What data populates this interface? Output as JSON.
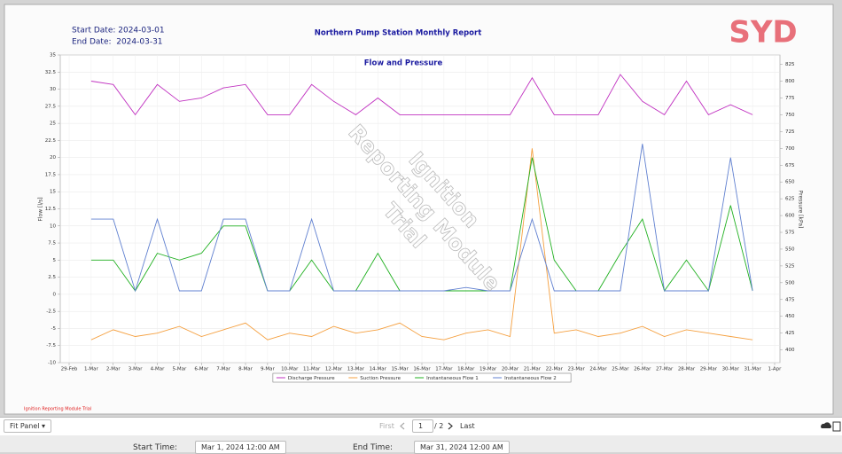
{
  "header": {
    "start_date": "Start Date: 2024-03-01",
    "end_date": "End Date:  2024-03-31",
    "title": "Northern Pump Station Monthly Report",
    "logo": "SYD"
  },
  "chart_data": {
    "type": "line",
    "title": "Flow and Pressure",
    "ylabel": "Flow [l/s]",
    "y2label": "Pressure [kPa]",
    "categories": [
      "29-Feb",
      "1-Mar",
      "2-Mar",
      "3-Mar",
      "4-Mar",
      "5-Mar",
      "6-Mar",
      "7-Mar",
      "8-Mar",
      "9-Mar",
      "10-Mar",
      "11-Mar",
      "12-Mar",
      "13-Mar",
      "14-Mar",
      "15-Mar",
      "16-Mar",
      "17-Mar",
      "18-Mar",
      "19-Mar",
      "20-Mar",
      "21-Mar",
      "22-Mar",
      "23-Mar",
      "24-Mar",
      "25-Mar",
      "26-Mar",
      "27-Mar",
      "28-Mar",
      "29-Mar",
      "30-Mar",
      "31-Mar",
      "1-Apr"
    ],
    "series": [
      {
        "name": "Discharge Pressure",
        "color": "#c030c0",
        "axis": "y2",
        "values": [
          null,
          800,
          795,
          750,
          795,
          770,
          775,
          790,
          795,
          750,
          750,
          795,
          770,
          750,
          775,
          750,
          750,
          750,
          750,
          750,
          750,
          805,
          750,
          750,
          750,
          810,
          770,
          750,
          800,
          750,
          765,
          750,
          null
        ]
      },
      {
        "name": "Suction Pressure",
        "color": "#f5a040",
        "axis": "y2",
        "values": [
          null,
          415,
          430,
          420,
          425,
          435,
          420,
          430,
          440,
          415,
          425,
          420,
          435,
          425,
          430,
          440,
          420,
          415,
          425,
          430,
          420,
          700,
          425,
          430,
          420,
          425,
          435,
          420,
          430,
          425,
          420,
          415,
          null
        ]
      },
      {
        "name": "Instantaneous Flow 1",
        "color": "#20b020",
        "values": [
          null,
          5,
          5,
          0.5,
          6,
          5,
          6,
          10,
          10,
          0.5,
          0.5,
          5,
          0.5,
          0.5,
          6,
          0.5,
          0.5,
          0.5,
          0.5,
          0.5,
          0.5,
          20,
          5,
          0.5,
          0.5,
          6,
          11,
          0.5,
          5,
          0.5,
          13,
          0.5,
          null
        ]
      },
      {
        "name": "Instantaneous Flow 2",
        "color": "#6080d0",
        "values": [
          null,
          11,
          11,
          0.5,
          11,
          0.5,
          0.5,
          11,
          11,
          0.5,
          0.5,
          11,
          0.5,
          0.5,
          0.5,
          0.5,
          0.5,
          0.5,
          1,
          0.5,
          0.5,
          11,
          0.5,
          0.5,
          0.5,
          0.5,
          22,
          0.5,
          0.5,
          0.5,
          20,
          0.5,
          null
        ]
      }
    ],
    "ylim": [
      -10,
      35
    ],
    "yticks": [
      -10,
      -7.5,
      -5,
      -2.5,
      0,
      2.5,
      5,
      7.5,
      10,
      12.5,
      15,
      17.5,
      20,
      22.5,
      25,
      27.5,
      30,
      32.5,
      35
    ],
    "y2lim": [
      381,
      839
    ],
    "y2ticks": [
      400,
      425,
      450,
      475,
      500,
      525,
      550,
      575,
      600,
      625,
      650,
      675,
      700,
      725,
      750,
      775,
      800,
      825
    ],
    "grid": true,
    "legend": "bottom"
  },
  "watermark": [
    "Ignition",
    "Reporting Module",
    "Trial"
  ],
  "footer_note": "Ignition Reporting Module Trial",
  "toolbar": {
    "zoom": "Fit Panel",
    "first": "First",
    "page": "1",
    "page_total": "/ 2",
    "last": "Last"
  },
  "params": {
    "start_label": "Start Time:",
    "start_value": "Mar 1, 2024 12:00 AM",
    "end_label": "End Time:",
    "end_value": "Mar 31, 2024 12:00 AM"
  }
}
